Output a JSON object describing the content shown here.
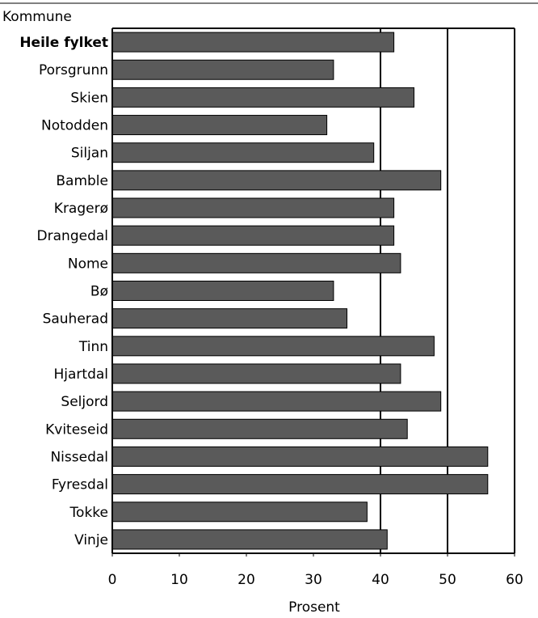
{
  "chart_data": {
    "type": "bar",
    "orientation": "horizontal",
    "category_axis_title": "Kommune",
    "xlabel": "Prosent",
    "xlim": [
      0,
      60
    ],
    "xticks": [
      0,
      10,
      20,
      30,
      40,
      50,
      60
    ],
    "grid": "vertical lines at 40, 50 and 60",
    "highlighted_category": "Heile fylket",
    "categories": [
      "Heile fylket",
      "Porsgrunn",
      "Skien",
      "Notodden",
      "Siljan",
      "Bamble",
      "Kragerø",
      "Drangedal",
      "Nome",
      "Bø",
      "Sauherad",
      "Tinn",
      "Hjartdal",
      "Seljord",
      "Kviteseid",
      "Nissedal",
      "Fyresdal",
      "Tokke",
      "Vinje"
    ],
    "values": [
      42,
      33,
      45,
      32,
      39,
      49,
      42,
      42,
      43,
      33,
      35,
      48,
      43,
      49,
      44,
      56,
      56,
      38,
      41
    ],
    "colors": {
      "bar_fill": "#5a5a5a",
      "bar_stroke": "#000000"
    }
  }
}
